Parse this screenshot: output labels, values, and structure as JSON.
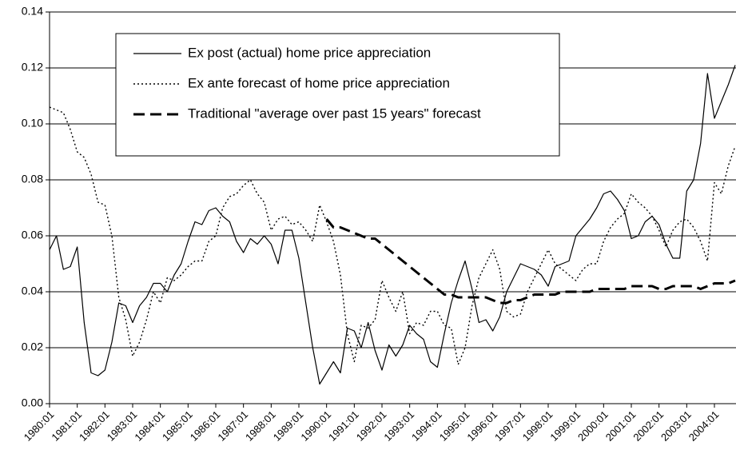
{
  "chart_data": {
    "type": "line",
    "categories": [
      "1980:01",
      null,
      null,
      null,
      "1981:01",
      null,
      null,
      null,
      "1982:01",
      null,
      null,
      null,
      "1983:01",
      null,
      null,
      null,
      "1984:01",
      null,
      null,
      null,
      "1985:01",
      null,
      null,
      null,
      "1986:01",
      null,
      null,
      null,
      "1987:01",
      null,
      null,
      null,
      "1988:01",
      null,
      null,
      null,
      "1989:01",
      null,
      null,
      null,
      "1990:01",
      null,
      null,
      null,
      "1991:01",
      null,
      null,
      null,
      "1992:01",
      null,
      null,
      null,
      "1993:01",
      null,
      null,
      null,
      "1994:01",
      null,
      null,
      null,
      "1995:01",
      null,
      null,
      null,
      "1996:01",
      null,
      null,
      null,
      "1997:01",
      null,
      null,
      null,
      "1998:01",
      null,
      null,
      null,
      "1999:01",
      null,
      null,
      null,
      "2000:01",
      null,
      null,
      null,
      "2001:01",
      null,
      null,
      null,
      "2002:01",
      null,
      null,
      null,
      "2003:01",
      null,
      null,
      null,
      "2004:01",
      null,
      null,
      null
    ],
    "series": [
      {
        "name": "Ex post (actual) home price appreciation",
        "color": "#000000",
        "style": "solid",
        "values": [
          0.055,
          0.06,
          0.048,
          0.049,
          0.056,
          0.029,
          0.011,
          0.01,
          0.012,
          0.022,
          0.036,
          0.035,
          0.029,
          0.035,
          0.038,
          0.043,
          0.043,
          0.04,
          0.046,
          0.05,
          0.058,
          0.065,
          0.064,
          0.069,
          0.07,
          0.067,
          0.065,
          0.058,
          0.054,
          0.059,
          0.057,
          0.06,
          0.057,
          0.05,
          0.062,
          0.062,
          0.052,
          0.036,
          0.02,
          0.007,
          0.011,
          0.015,
          0.011,
          0.027,
          0.026,
          0.02,
          0.029,
          0.019,
          0.012,
          0.021,
          0.017,
          0.021,
          0.028,
          0.025,
          0.023,
          0.015,
          0.013,
          0.025,
          0.036,
          0.044,
          0.051,
          0.041,
          0.029,
          0.03,
          0.026,
          0.031,
          0.04,
          0.045,
          0.05,
          0.049,
          0.048,
          0.046,
          0.042,
          0.049,
          0.05,
          0.051,
          0.06,
          0.063,
          0.066,
          0.07,
          0.075,
          0.076,
          0.073,
          0.069,
          0.059,
          0.06,
          0.065,
          0.067,
          0.064,
          0.057,
          0.052,
          0.052,
          0.076,
          0.08,
          0.093,
          0.118,
          0.102,
          0.108,
          0.114,
          0.121
        ]
      },
      {
        "name": "Ex ante forecast of home price appreciation",
        "color": "#000000",
        "style": "dotted",
        "values": [
          0.106,
          0.105,
          0.104,
          0.098,
          0.09,
          0.088,
          0.082,
          0.072,
          0.071,
          0.06,
          0.038,
          0.03,
          0.017,
          0.022,
          0.03,
          0.04,
          0.036,
          0.045,
          0.044,
          0.046,
          0.049,
          0.051,
          0.051,
          0.058,
          0.06,
          0.07,
          0.074,
          0.075,
          0.078,
          0.08,
          0.075,
          0.072,
          0.062,
          0.066,
          0.067,
          0.064,
          0.065,
          0.062,
          0.058,
          0.071,
          0.065,
          0.058,
          0.046,
          0.025,
          0.015,
          0.028,
          0.027,
          0.03,
          0.044,
          0.038,
          0.033,
          0.04,
          0.025,
          0.029,
          0.028,
          0.033,
          0.033,
          0.028,
          0.027,
          0.014,
          0.02,
          0.035,
          0.045,
          0.05,
          0.055,
          0.048,
          0.033,
          0.031,
          0.032,
          0.04,
          0.045,
          0.05,
          0.055,
          0.05,
          0.048,
          0.046,
          0.044,
          0.048,
          0.05,
          0.05,
          0.058,
          0.063,
          0.066,
          0.068,
          0.075,
          0.072,
          0.07,
          0.067,
          0.062,
          0.056,
          0.062,
          0.065,
          0.066,
          0.063,
          0.058,
          0.051,
          0.079,
          0.075,
          0.085,
          0.092
        ]
      },
      {
        "name": "Traditional \"average over past 15 years\" forecast",
        "color": "#000000",
        "style": "dashed",
        "values": [
          null,
          null,
          null,
          null,
          null,
          null,
          null,
          null,
          null,
          null,
          null,
          null,
          null,
          null,
          null,
          null,
          null,
          null,
          null,
          null,
          null,
          null,
          null,
          null,
          null,
          null,
          null,
          null,
          null,
          null,
          null,
          null,
          null,
          null,
          null,
          null,
          null,
          null,
          null,
          null,
          0.066,
          0.063,
          0.063,
          0.062,
          0.061,
          0.06,
          0.059,
          0.059,
          0.057,
          0.055,
          0.053,
          0.051,
          0.049,
          0.047,
          0.045,
          0.043,
          0.041,
          0.039,
          0.039,
          0.038,
          0.038,
          0.038,
          0.038,
          0.038,
          0.037,
          0.036,
          0.036,
          0.037,
          0.037,
          0.038,
          0.039,
          0.039,
          0.039,
          0.039,
          0.04,
          0.04,
          0.04,
          0.04,
          0.04,
          0.041,
          0.041,
          0.041,
          0.041,
          0.041,
          0.042,
          0.042,
          0.042,
          0.042,
          0.041,
          0.041,
          0.042,
          0.042,
          0.042,
          0.042,
          0.041,
          0.042,
          0.043,
          0.043,
          0.043,
          0.044
        ]
      }
    ],
    "ylim": [
      0,
      0.14
    ],
    "yticks": [
      {
        "value": 0,
        "label": "0.00"
      },
      {
        "value": 0.02,
        "label": "0.02"
      },
      {
        "value": 0.04,
        "label": "0.04"
      },
      {
        "value": 0.06,
        "label": "0.06"
      },
      {
        "value": 0.08,
        "label": "0.08"
      },
      {
        "value": 0.1,
        "label": "0.10"
      },
      {
        "value": 0.12,
        "label": "0.12"
      },
      {
        "value": 0.14,
        "label": "0.14"
      }
    ],
    "grid": true,
    "legend": "upper left"
  }
}
